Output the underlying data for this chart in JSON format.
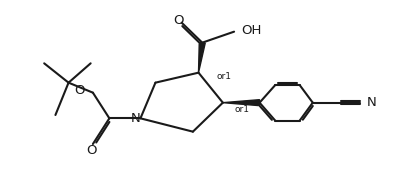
{
  "bg_color": "#ffffff",
  "line_color": "#1a1a1a",
  "line_width": 1.5,
  "font_size": 8.5,
  "fig_width": 4.12,
  "fig_height": 1.94,
  "dpi": 100,
  "sx": 0.3745,
  "sy": 0.3333,
  "atoms": {
    "N": "N",
    "O_boc": "O",
    "O_cooh": "O",
    "OH": "OH",
    "or1_top": "or1",
    "or1_bot": "or1",
    "CN_N": "N"
  }
}
